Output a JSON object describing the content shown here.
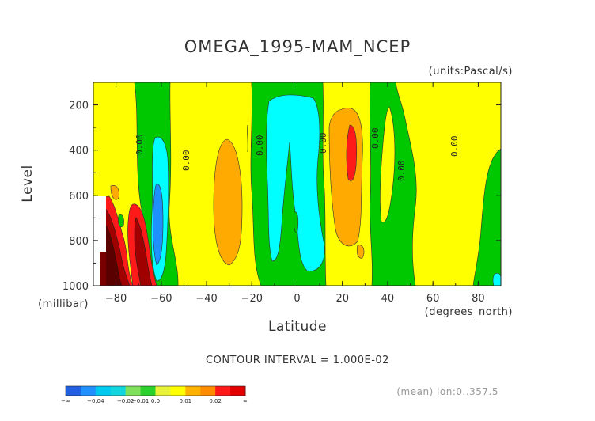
{
  "chart_data": {
    "type": "heatmap",
    "title": "OMEGA_1995-MAM_NCEP",
    "units": "(units:Pascal/s)",
    "xlabel": "Latitude",
    "x_units": "(degrees_north)",
    "ylabel": "Level",
    "y_units": "(millibar)",
    "xlim": [
      -90,
      90
    ],
    "ylim": [
      1000,
      100
    ],
    "x_ticks": [
      "-80",
      "-60",
      "-40",
      "-20",
      "0",
      "20",
      "40",
      "60",
      "80"
    ],
    "y_ticks": [
      "200",
      "400",
      "600",
      "800",
      "1000"
    ],
    "contour_interval": "CONTOUR INTERVAL = 1.000E-02",
    "contour_labels": [
      "0.00",
      "0.00",
      "0.00",
      "0.00",
      "0.00",
      "0.00",
      "0.00"
    ],
    "colorbar": {
      "labels": [
        "-∞",
        "-0.04",
        "-0.02",
        "-0.01",
        "0.0",
        "0.01",
        "0.02",
        "∞"
      ],
      "colors": [
        "#1f5fe0",
        "#1e90ff",
        "#00c8f0",
        "#14d4e0",
        "#7fe15a",
        "#2ad12a",
        "#e9f23a",
        "#ffff00",
        "#ffb000",
        "#ff8c00",
        "#ff1a1a",
        "#e00000"
      ]
    },
    "footnote": "(mean) lon:0..357.5"
  }
}
